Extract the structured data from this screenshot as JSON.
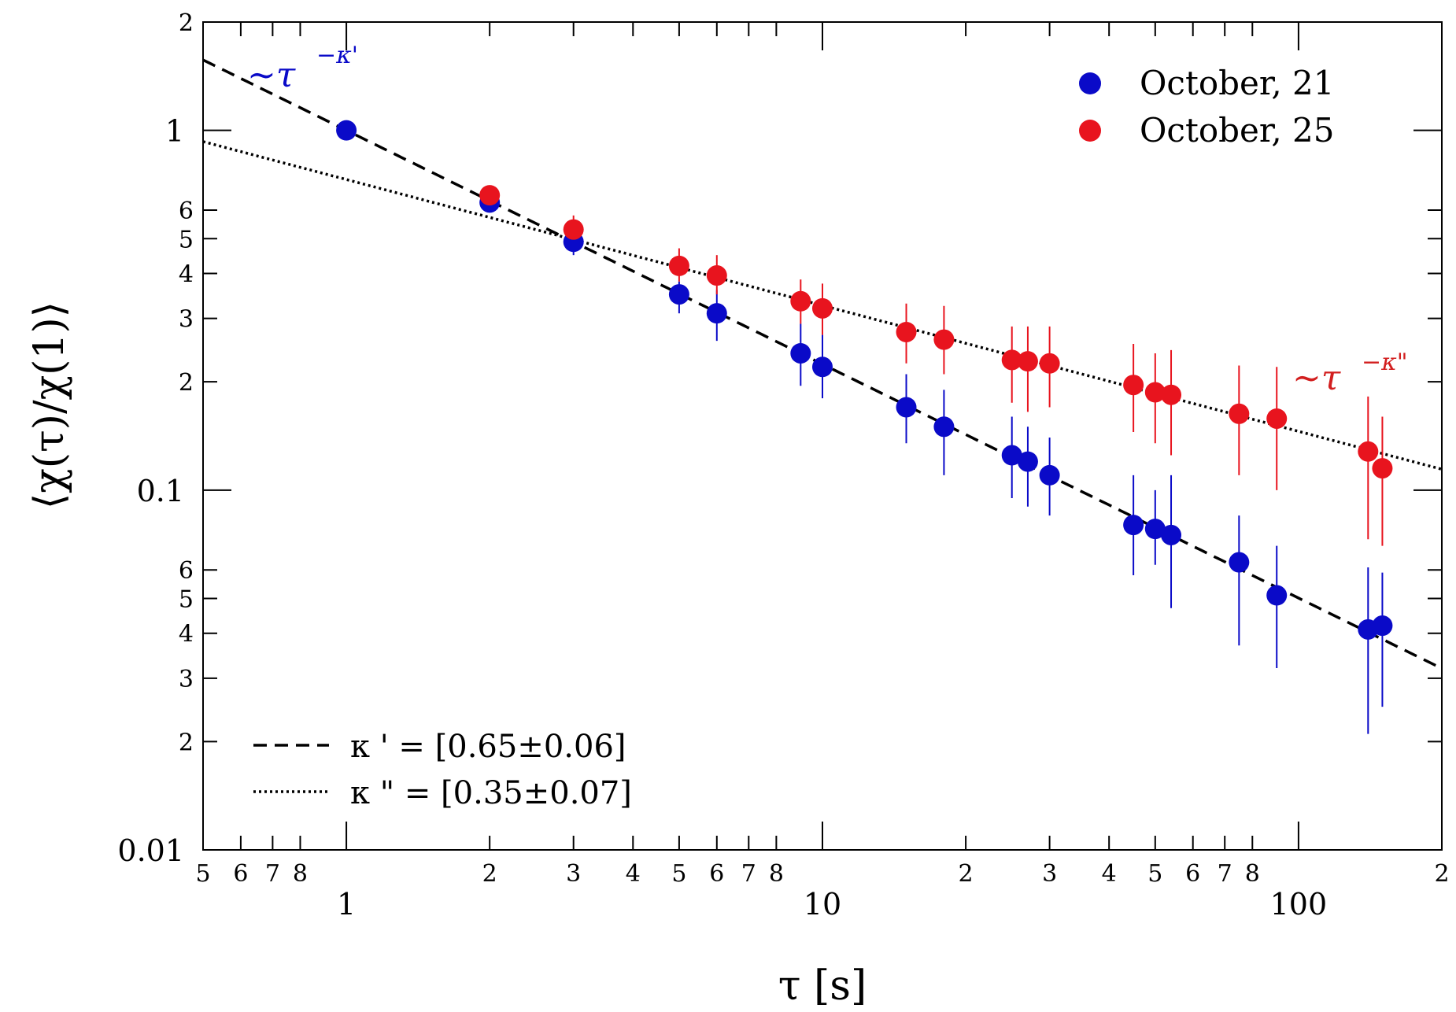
{
  "chart_data": {
    "type": "scatter",
    "xscale": "log",
    "yscale": "log",
    "xlabel": "τ [s]",
    "ylabel": "⟨χ(τ)/χ(1)⟩",
    "xlim": [
      0.5,
      200
    ],
    "ylim": [
      0.01,
      2
    ],
    "x_major_ticks": [
      {
        "value": 1,
        "label": "1"
      },
      {
        "value": 10,
        "label": "10"
      },
      {
        "value": 100,
        "label": "100"
      }
    ],
    "x_minor_ticks": [
      {
        "value": 0.5,
        "label": "5"
      },
      {
        "value": 0.6,
        "label": "6"
      },
      {
        "value": 0.7,
        "label": "7"
      },
      {
        "value": 0.8,
        "label": "8"
      },
      {
        "value": 2,
        "label": "2"
      },
      {
        "value": 3,
        "label": "3"
      },
      {
        "value": 4,
        "label": "4"
      },
      {
        "value": 5,
        "label": "5"
      },
      {
        "value": 6,
        "label": "6"
      },
      {
        "value": 7,
        "label": "7"
      },
      {
        "value": 8,
        "label": "8"
      },
      {
        "value": 20,
        "label": "2"
      },
      {
        "value": 30,
        "label": "3"
      },
      {
        "value": 40,
        "label": "4"
      },
      {
        "value": 50,
        "label": "5"
      },
      {
        "value": 60,
        "label": "6"
      },
      {
        "value": 70,
        "label": "7"
      },
      {
        "value": 80,
        "label": "8"
      },
      {
        "value": 200,
        "label": "2"
      }
    ],
    "y_major_ticks": [
      {
        "value": 0.01,
        "label": "0.01"
      },
      {
        "value": 0.1,
        "label": "0.1"
      },
      {
        "value": 1,
        "label": "1"
      }
    ],
    "y_minor_ticks": [
      {
        "value": 0.02,
        "label": "2"
      },
      {
        "value": 0.03,
        "label": "3"
      },
      {
        "value": 0.04,
        "label": "4"
      },
      {
        "value": 0.05,
        "label": "5"
      },
      {
        "value": 0.06,
        "label": "6"
      },
      {
        "value": 0.2,
        "label": "2"
      },
      {
        "value": 0.3,
        "label": "3"
      },
      {
        "value": 0.4,
        "label": "4"
      },
      {
        "value": 0.5,
        "label": "5"
      },
      {
        "value": 0.6,
        "label": "6"
      },
      {
        "value": 2,
        "label": "2"
      }
    ],
    "series": [
      {
        "name": "October, 21",
        "color": "#0a0ac8",
        "points": [
          {
            "x": 1,
            "y": 1.0,
            "lo": 1.0,
            "hi": 1.0
          },
          {
            "x": 2,
            "y": 0.63,
            "lo": 0.63,
            "hi": 0.63
          },
          {
            "x": 3,
            "y": 0.49,
            "lo": 0.45,
            "hi": 0.52
          },
          {
            "x": 5,
            "y": 0.35,
            "lo": 0.31,
            "hi": 0.38
          },
          {
            "x": 6,
            "y": 0.31,
            "lo": 0.26,
            "hi": 0.36
          },
          {
            "x": 9,
            "y": 0.24,
            "lo": 0.195,
            "hi": 0.29
          },
          {
            "x": 10,
            "y": 0.22,
            "lo": 0.18,
            "hi": 0.27
          },
          {
            "x": 15,
            "y": 0.17,
            "lo": 0.135,
            "hi": 0.21
          },
          {
            "x": 18,
            "y": 0.15,
            "lo": 0.11,
            "hi": 0.19
          },
          {
            "x": 25,
            "y": 0.125,
            "lo": 0.095,
            "hi": 0.16
          },
          {
            "x": 27,
            "y": 0.12,
            "lo": 0.09,
            "hi": 0.15
          },
          {
            "x": 30,
            "y": 0.11,
            "lo": 0.085,
            "hi": 0.14
          },
          {
            "x": 45,
            "y": 0.08,
            "lo": 0.058,
            "hi": 0.11
          },
          {
            "x": 50,
            "y": 0.078,
            "lo": 0.062,
            "hi": 0.1
          },
          {
            "x": 54,
            "y": 0.075,
            "lo": 0.047,
            "hi": 0.11
          },
          {
            "x": 75,
            "y": 0.063,
            "lo": 0.037,
            "hi": 0.085
          },
          {
            "x": 90,
            "y": 0.051,
            "lo": 0.032,
            "hi": 0.07
          },
          {
            "x": 140,
            "y": 0.041,
            "lo": 0.021,
            "hi": 0.061
          },
          {
            "x": 150,
            "y": 0.042,
            "lo": 0.025,
            "hi": 0.059
          }
        ]
      },
      {
        "name": "October, 25",
        "color": "#e8141e",
        "points": [
          {
            "x": 2,
            "y": 0.66,
            "lo": 0.66,
            "hi": 0.66
          },
          {
            "x": 3,
            "y": 0.53,
            "lo": 0.5,
            "hi": 0.58
          },
          {
            "x": 5,
            "y": 0.42,
            "lo": 0.38,
            "hi": 0.47
          },
          {
            "x": 6,
            "y": 0.395,
            "lo": 0.35,
            "hi": 0.45
          },
          {
            "x": 9,
            "y": 0.335,
            "lo": 0.29,
            "hi": 0.385
          },
          {
            "x": 10,
            "y": 0.32,
            "lo": 0.27,
            "hi": 0.375
          },
          {
            "x": 15,
            "y": 0.275,
            "lo": 0.225,
            "hi": 0.33
          },
          {
            "x": 18,
            "y": 0.262,
            "lo": 0.21,
            "hi": 0.325
          },
          {
            "x": 25,
            "y": 0.23,
            "lo": 0.175,
            "hi": 0.285
          },
          {
            "x": 27,
            "y": 0.228,
            "lo": 0.165,
            "hi": 0.285
          },
          {
            "x": 30,
            "y": 0.225,
            "lo": 0.17,
            "hi": 0.285
          },
          {
            "x": 45,
            "y": 0.196,
            "lo": 0.145,
            "hi": 0.255
          },
          {
            "x": 50,
            "y": 0.187,
            "lo": 0.135,
            "hi": 0.24
          },
          {
            "x": 54,
            "y": 0.184,
            "lo": 0.125,
            "hi": 0.245
          },
          {
            "x": 75,
            "y": 0.163,
            "lo": 0.11,
            "hi": 0.222
          },
          {
            "x": 90,
            "y": 0.158,
            "lo": 0.1,
            "hi": 0.22
          },
          {
            "x": 140,
            "y": 0.128,
            "lo": 0.073,
            "hi": 0.182
          },
          {
            "x": 150,
            "y": 0.115,
            "lo": 0.07,
            "hi": 0.16
          }
        ]
      }
    ],
    "fits": [
      {
        "name": "dashed",
        "style": "dashed",
        "amplitude": 1.0,
        "exponent": 0.65,
        "label": "κ ' = [0.65±0.06]",
        "annotation": "~τ",
        "annotation_sup": "−κ'",
        "annotation_color": "#0a0ac8"
      },
      {
        "name": "dotted",
        "style": "dotted",
        "amplitude": 0.73,
        "exponent": 0.35,
        "label": "κ \" = [0.35±0.07]",
        "annotation": "~τ",
        "annotation_sup": "−κ\"",
        "annotation_color": "#d21e1e"
      }
    ],
    "legend_position": "top-right",
    "fit_legend_position": "bottom-left"
  }
}
